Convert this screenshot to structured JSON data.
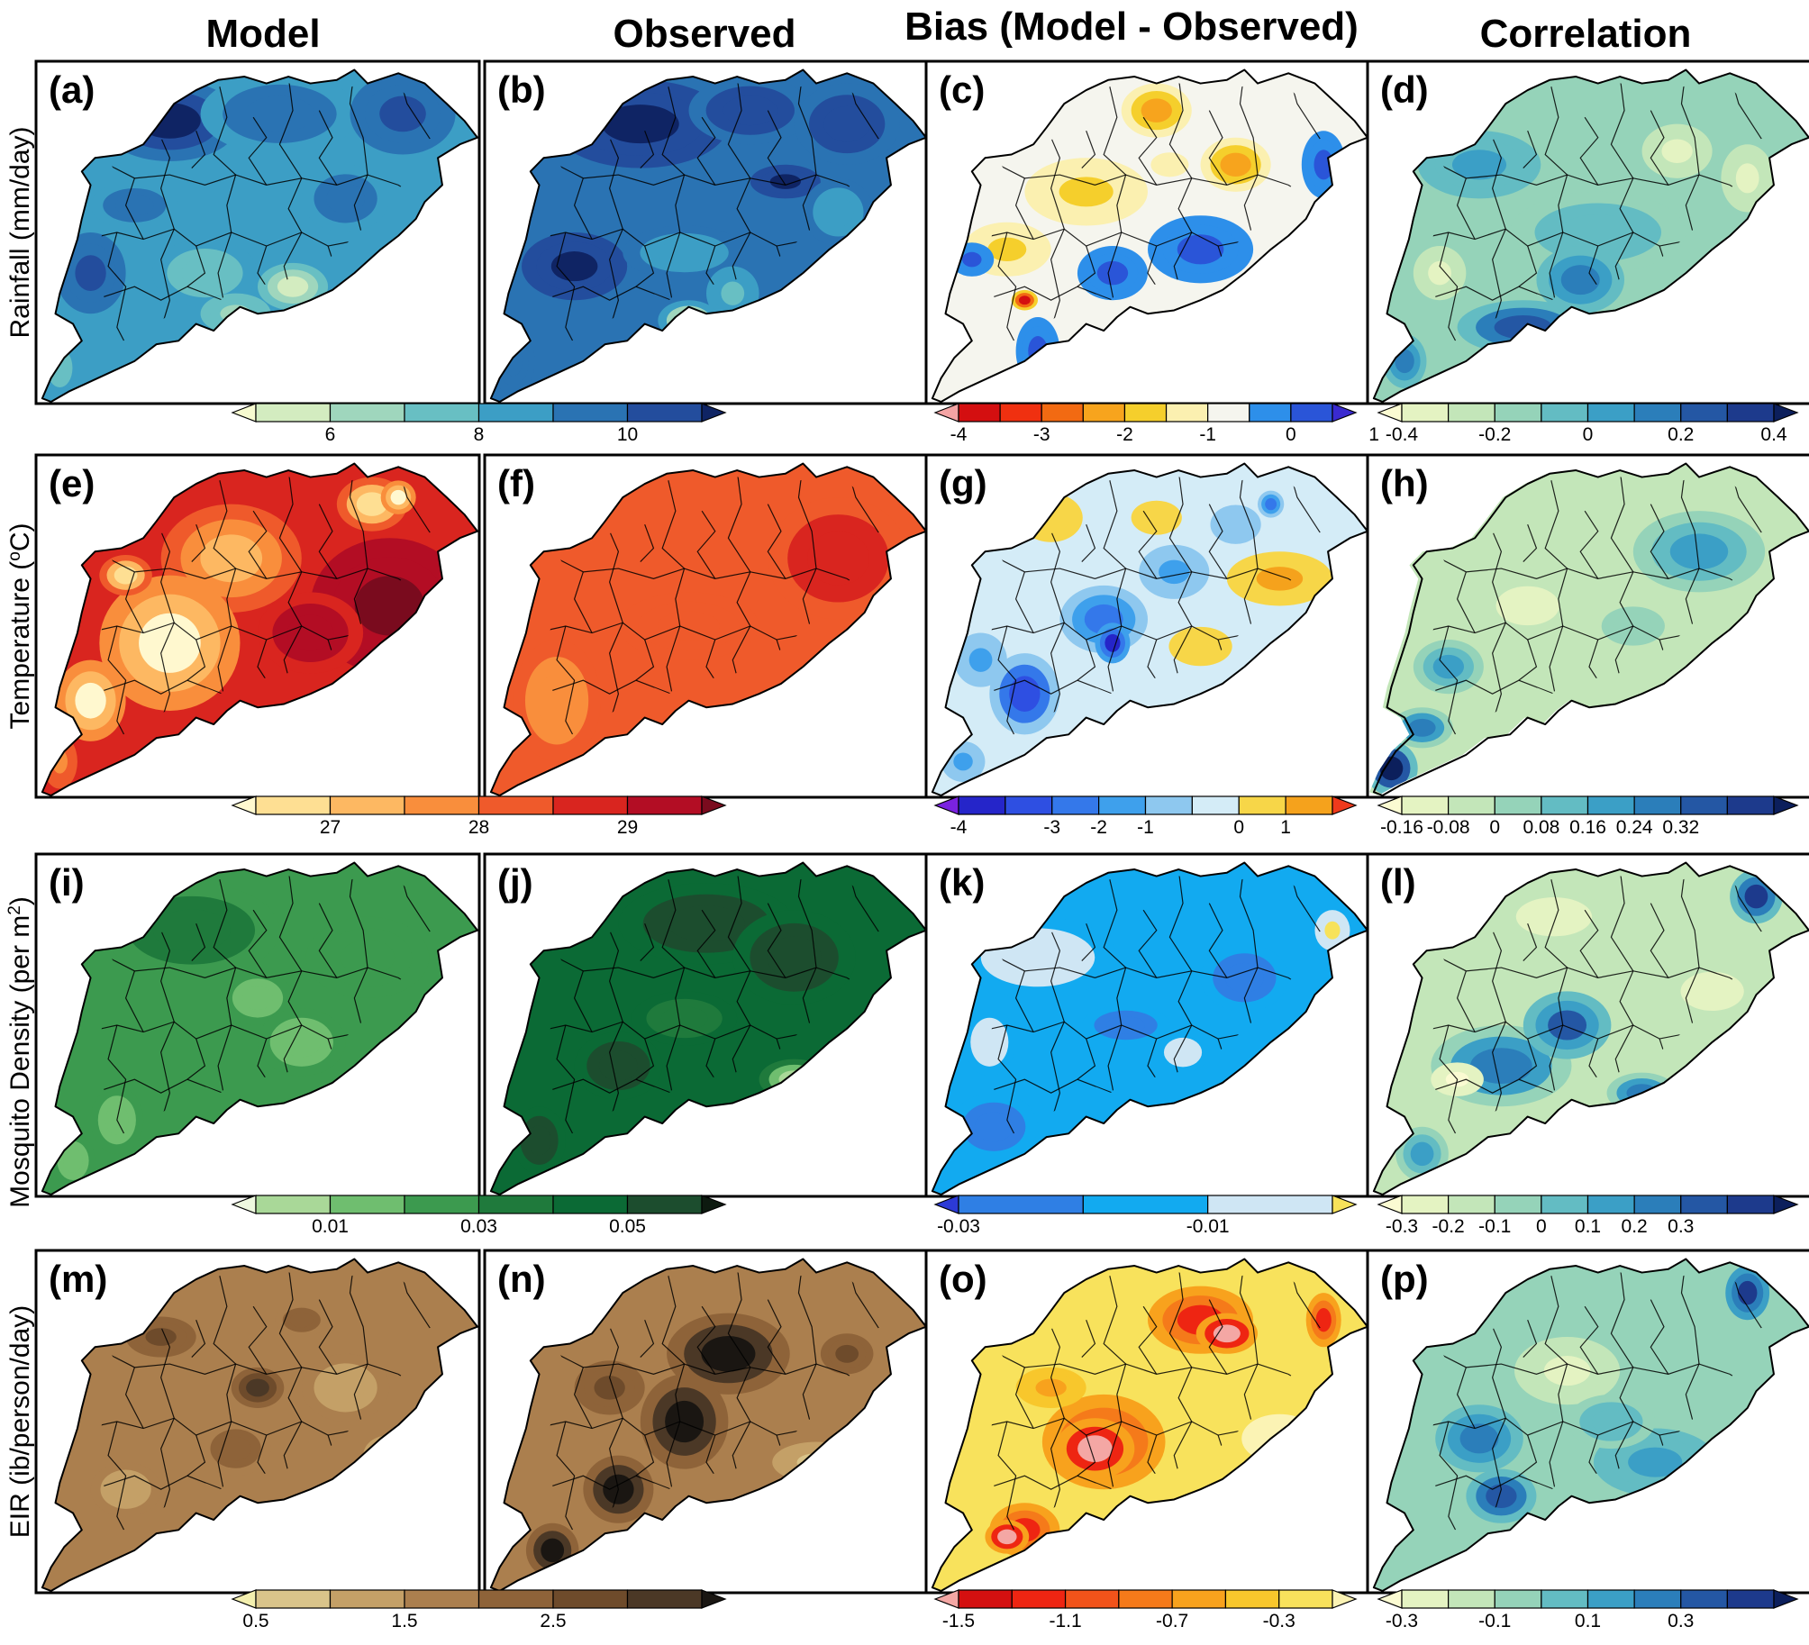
{
  "columns": [
    "Model",
    "Observed",
    "Bias (Model - Observed)",
    "Correlation"
  ],
  "rows": [
    {
      "label": "Rainfall (mm/day)",
      "label_parts": [
        "Rainfall (mm/day)"
      ]
    },
    {
      "label": "Temperature (°C)",
      "label_parts": [
        "Temperature (",
        "o",
        "C)"
      ]
    },
    {
      "label": "Mosquito Density (per m²)",
      "label_parts": [
        "Mosquito Density (per m",
        "2",
        ")"
      ]
    },
    {
      "label": "EIR (ib/person/day)",
      "label_parts": [
        "EIR (ib/person/day)"
      ]
    }
  ],
  "panels": [
    {
      "id": "a",
      "label": "(a)",
      "palette": "blue_seq",
      "pattern": "rain_model"
    },
    {
      "id": "b",
      "label": "(b)",
      "palette": "blue_seq",
      "pattern": "rain_obs"
    },
    {
      "id": "c",
      "label": "(c)",
      "palette": "rain_bias",
      "pattern": "rain_bias"
    },
    {
      "id": "d",
      "label": "(d)",
      "palette": "corr",
      "pattern": "rain_corr"
    },
    {
      "id": "e",
      "label": "(e)",
      "palette": "heat",
      "pattern": "temp_model"
    },
    {
      "id": "f",
      "label": "(f)",
      "palette": "heat",
      "pattern": "temp_obs"
    },
    {
      "id": "g",
      "label": "(g)",
      "palette": "temp_bias",
      "pattern": "temp_bias"
    },
    {
      "id": "h",
      "label": "(h)",
      "palette": "corr",
      "pattern": "temp_corr"
    },
    {
      "id": "i",
      "label": "(i)",
      "palette": "green",
      "pattern": "mos_model"
    },
    {
      "id": "j",
      "label": "(j)",
      "palette": "green",
      "pattern": "mos_obs"
    },
    {
      "id": "k",
      "label": "(k)",
      "palette": "mos_bias",
      "pattern": "mos_bias"
    },
    {
      "id": "l",
      "label": "(l)",
      "palette": "corr",
      "pattern": "mos_corr"
    },
    {
      "id": "m",
      "label": "(m)",
      "palette": "brown",
      "pattern": "eir_model"
    },
    {
      "id": "n",
      "label": "(n)",
      "palette": "brown",
      "pattern": "eir_obs"
    },
    {
      "id": "o",
      "label": "(o)",
      "palette": "eir_bias",
      "pattern": "eir_bias"
    },
    {
      "id": "p",
      "label": "(p)",
      "palette": "corr",
      "pattern": "eir_corr"
    }
  ],
  "colorbars": [
    {
      "id": "rain-model",
      "row": 0,
      "span": "model-observed",
      "colors": [
        "#f7fbd0",
        "#d3ecc0",
        "#9fd6bd",
        "#68bfc3",
        "#3c9ec5",
        "#2a73b3",
        "#234d9d",
        "#0f2464"
      ],
      "ticks": [
        "6",
        "8",
        "10"
      ],
      "tick_positions": [
        2,
        4,
        6
      ]
    },
    {
      "id": "rain-bias",
      "row": 0,
      "span": "bias",
      "colors": [
        "#f4a4a4",
        "#d40f10",
        "#f03010",
        "#f26a12",
        "#f7a41d",
        "#f5cf2c",
        "#fbf0b0",
        "#f5f5ee",
        "#2d8fea",
        "#2a55d8",
        "#3a2ad0"
      ],
      "ticks": [
        "-4",
        "-3",
        "-2",
        "-1",
        "0",
        "1"
      ],
      "tick_positions": [
        1,
        3,
        5,
        7,
        9,
        11
      ]
    },
    {
      "id": "rain-corr",
      "row": 0,
      "span": "correlation",
      "colors": [
        "#fbfbd2",
        "#e4f3c2",
        "#c3e6b9",
        "#95d3b9",
        "#63bcc3",
        "#3b9fc6",
        "#2b7eba",
        "#2457a4",
        "#1d3a8c",
        "#0c1f5c"
      ],
      "ticks": [
        "-0.4",
        "-0.2",
        "0",
        "0.2",
        "0.4"
      ],
      "tick_positions": [
        1,
        3,
        5,
        7,
        9
      ]
    },
    {
      "id": "temp-model",
      "row": 1,
      "span": "model-observed",
      "colors": [
        "#fff8cf",
        "#fedf93",
        "#fdb862",
        "#f98e3c",
        "#ef5a2b",
        "#d9251f",
        "#b30d24",
        "#7a0b1e"
      ],
      "ticks": [
        "27",
        "28",
        "29"
      ],
      "tick_positions": [
        2,
        4,
        6
      ]
    },
    {
      "id": "temp-bias",
      "row": 1,
      "span": "bias",
      "colors": [
        "#7a22e0",
        "#2525c9",
        "#2e4fe2",
        "#3478ea",
        "#3ea0ec",
        "#8ec8ef",
        "#d4ecf7",
        "#f7d648",
        "#f5a21c",
        "#ef3a1c"
      ],
      "ticks": [
        "-4",
        "-3",
        "-2",
        "-1",
        "0",
        "1"
      ],
      "tick_positions": [
        1,
        3,
        4,
        5,
        7,
        8
      ]
    },
    {
      "id": "temp-corr",
      "row": 1,
      "span": "correlation",
      "colors": [
        "#fbfbd2",
        "#e4f3c2",
        "#c3e6b9",
        "#95d3b9",
        "#63bcc3",
        "#3b9fc6",
        "#2b7eba",
        "#2457a4",
        "#1d3a8c",
        "#0c1f5c"
      ],
      "ticks": [
        "-0.16",
        "-0.08",
        "0",
        "0.08",
        "0.16",
        "0.24",
        "0.32"
      ],
      "tick_positions": [
        1,
        2,
        3,
        4,
        5,
        6,
        7
      ]
    },
    {
      "id": "mos-model",
      "row": 2,
      "span": "model-observed",
      "colors": [
        "#eef8df",
        "#a9d898",
        "#6fbe6f",
        "#3c9a4f",
        "#1f7a3c",
        "#0b6a35",
        "#1c4d2e",
        "#0d1a10"
      ],
      "ticks": [
        "0.01",
        "0.03",
        "0.05"
      ],
      "tick_positions": [
        2,
        4,
        6
      ]
    },
    {
      "id": "mos-bias",
      "row": 2,
      "span": "bias",
      "colors": [
        "#2c3ad6",
        "#2f7fe4",
        "#12aaf0",
        "#cfe6f4",
        "#f7e25a"
      ],
      "ticks": [
        "-0.03",
        "-0.01"
      ],
      "tick_positions": [
        1,
        3
      ]
    },
    {
      "id": "mos-corr",
      "row": 2,
      "span": "correlation",
      "colors": [
        "#fbfbd2",
        "#e4f3c2",
        "#c3e6b9",
        "#95d3b9",
        "#63bcc3",
        "#3b9fc6",
        "#2b7eba",
        "#2457a4",
        "#1d3a8c",
        "#0c1f5c"
      ],
      "ticks": [
        "-0.3",
        "-0.2",
        "-0.1",
        "0",
        "0.1",
        "0.2",
        "0.3"
      ],
      "tick_positions": [
        1,
        2,
        3,
        4,
        5,
        6,
        7
      ]
    },
    {
      "id": "eir-model",
      "row": 3,
      "span": "model-observed",
      "colors": [
        "#f3efae",
        "#d9c48a",
        "#c4a067",
        "#ab7f4e",
        "#8e6339",
        "#6e4b2b",
        "#4b3826",
        "#1a1612"
      ],
      "ticks": [
        "0.5",
        "1.5",
        "2.5"
      ],
      "tick_positions": [
        1,
        3,
        5
      ]
    },
    {
      "id": "eir-bias",
      "row": 3,
      "span": "bias",
      "colors": [
        "#f4a7a4",
        "#d41010",
        "#ee2512",
        "#f2531a",
        "#f57a1a",
        "#f8a21d",
        "#f8c72c",
        "#f8e25c",
        "#fbf3b4"
      ],
      "ticks": [
        "-1.5",
        "-1.1",
        "-0.7",
        "-0.3"
      ],
      "tick_positions": [
        1,
        3,
        5,
        7
      ]
    },
    {
      "id": "eir-corr",
      "row": 3,
      "span": "correlation",
      "colors": [
        "#fbfbd2",
        "#e4f3c2",
        "#c3e6b9",
        "#95d3b9",
        "#63bcc3",
        "#3b9fc6",
        "#2b7eba",
        "#2457a4",
        "#1d3a8c",
        "#0c1f5c"
      ],
      "ticks": [
        "-0.3",
        "-0.1",
        "0.1",
        "0.3"
      ],
      "tick_positions": [
        1,
        3,
        5,
        7
      ]
    }
  ]
}
